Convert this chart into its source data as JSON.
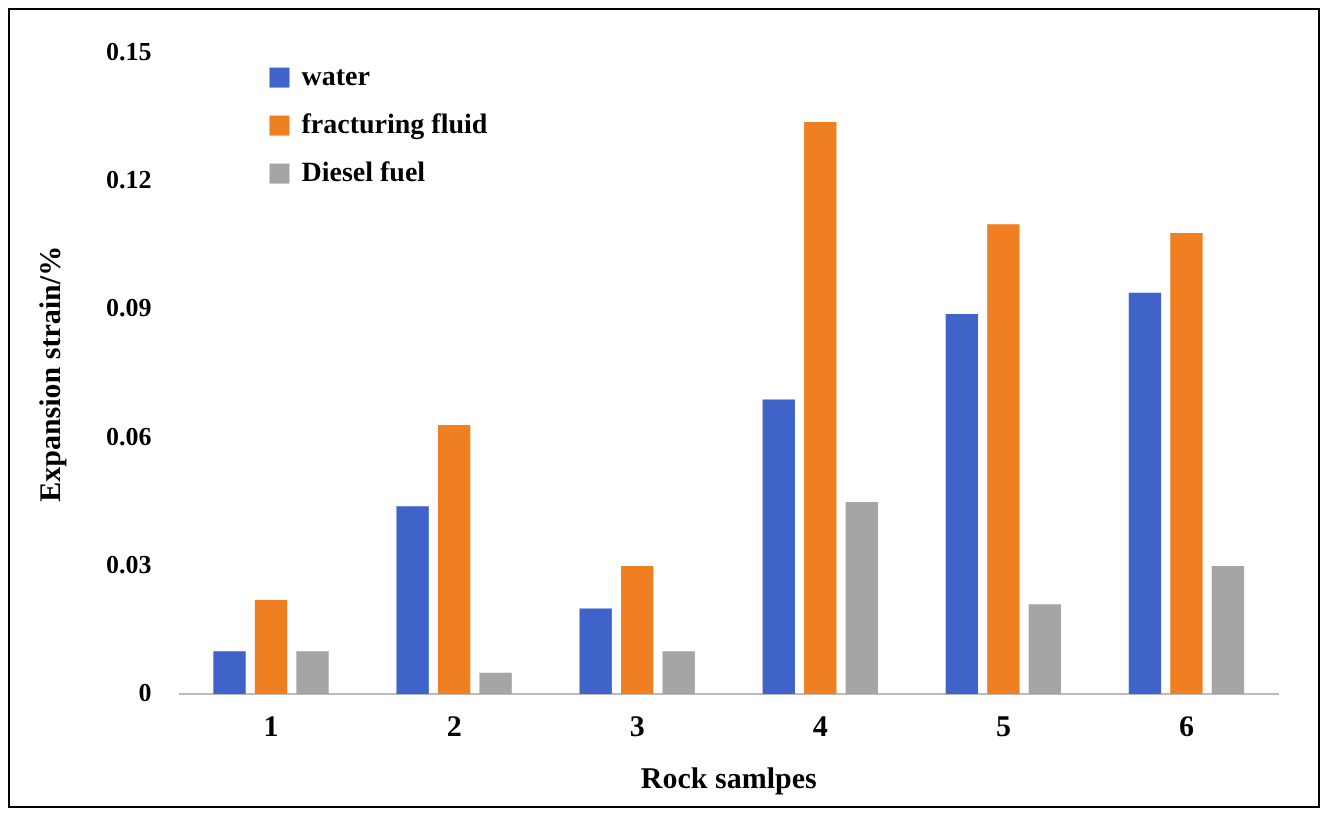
{
  "chart_data": {
    "type": "bar",
    "xlabel": "Rock samlpes",
    "ylabel": "Expansion strain/%",
    "categories": [
      "1",
      "2",
      "3",
      "4",
      "5",
      "6"
    ],
    "series": [
      {
        "name": "water",
        "color": "#3f63c9",
        "values": [
          0.01,
          0.044,
          0.02,
          0.069,
          0.089,
          0.094
        ]
      },
      {
        "name": "fracturing fluid",
        "color": "#f07f22",
        "values": [
          0.022,
          0.063,
          0.03,
          0.134,
          0.11,
          0.108
        ]
      },
      {
        "name": "Diesel fuel",
        "color": "#a5a5a5",
        "values": [
          0.01,
          0.005,
          0.01,
          0.045,
          0.021,
          0.03
        ]
      }
    ],
    "ylim": [
      0,
      0.15
    ],
    "yticks": [
      0,
      0.03,
      0.06,
      0.09,
      0.12,
      0.15
    ],
    "grid": false,
    "legend": "top left"
  }
}
